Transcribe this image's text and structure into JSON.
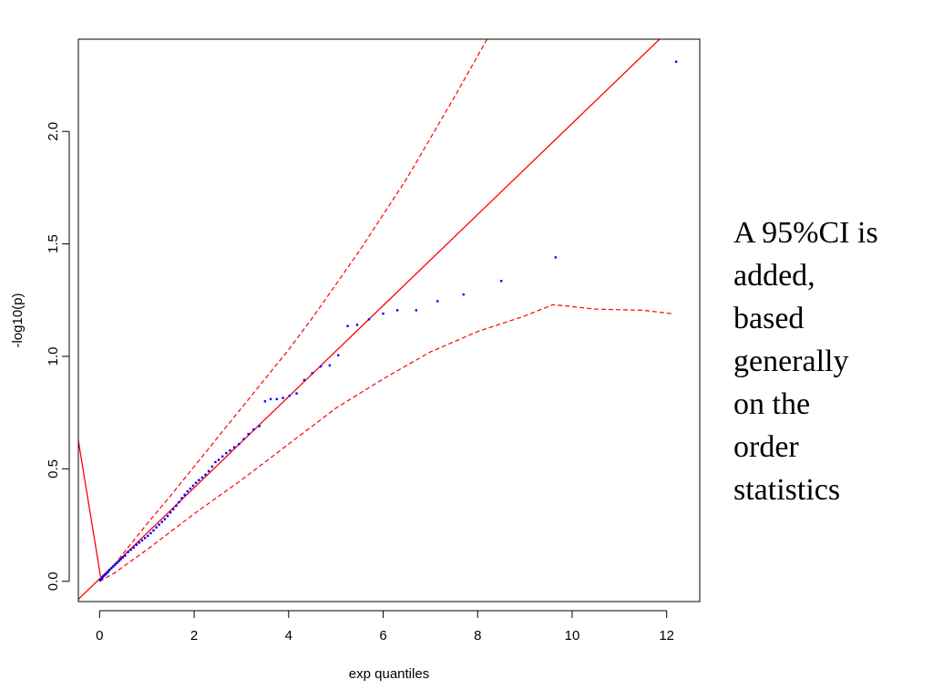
{
  "chart_data": {
    "type": "scatter",
    "xlabel": "exp quantiles",
    "ylabel": "-log10(p)",
    "xlim": [
      -0.45,
      12.7
    ],
    "ylim": [
      -0.09,
      2.41
    ],
    "x_ticks": [
      0,
      2,
      4,
      6,
      8,
      10,
      12
    ],
    "x_tick_labels": [
      "0",
      "2",
      "4",
      "6",
      "8",
      "10",
      "12"
    ],
    "y_ticks": [
      0.0,
      0.5,
      1.0,
      1.5,
      2.0
    ],
    "y_tick_labels": [
      "0.0",
      "0.5",
      "1.0",
      "1.5",
      "2.0"
    ],
    "grid": false,
    "colors": {
      "points": "#0000ff",
      "lines": "#ff0000",
      "axes": "#000000"
    },
    "points": [
      [
        0.01,
        0.005
      ],
      [
        0.03,
        0.01
      ],
      [
        0.05,
        0.015
      ],
      [
        0.07,
        0.02
      ],
      [
        0.09,
        0.025
      ],
      [
        0.12,
        0.03
      ],
      [
        0.15,
        0.035
      ],
      [
        0.18,
        0.042
      ],
      [
        0.21,
        0.05
      ],
      [
        0.25,
        0.058
      ],
      [
        0.29,
        0.066
      ],
      [
        0.33,
        0.074
      ],
      [
        0.37,
        0.082
      ],
      [
        0.41,
        0.09
      ],
      [
        0.45,
        0.098
      ],
      [
        0.49,
        0.106
      ],
      [
        0.54,
        0.114
      ],
      [
        0.6,
        0.13
      ],
      [
        0.66,
        0.14
      ],
      [
        0.72,
        0.15
      ],
      [
        0.78,
        0.162
      ],
      [
        0.84,
        0.172
      ],
      [
        0.9,
        0.182
      ],
      [
        0.96,
        0.192
      ],
      [
        1.02,
        0.202
      ],
      [
        1.08,
        0.214
      ],
      [
        1.14,
        0.226
      ],
      [
        1.2,
        0.24
      ],
      [
        1.26,
        0.252
      ],
      [
        1.32,
        0.264
      ],
      [
        1.38,
        0.276
      ],
      [
        1.44,
        0.29
      ],
      [
        1.5,
        0.306
      ],
      [
        1.56,
        0.32
      ],
      [
        1.62,
        0.336
      ],
      [
        1.68,
        0.352
      ],
      [
        1.74,
        0.37
      ],
      [
        1.8,
        0.385
      ],
      [
        1.86,
        0.4
      ],
      [
        1.92,
        0.412
      ],
      [
        1.98,
        0.425
      ],
      [
        2.04,
        0.438
      ],
      [
        2.1,
        0.45
      ],
      [
        2.17,
        0.462
      ],
      [
        2.24,
        0.474
      ],
      [
        2.31,
        0.49
      ],
      [
        2.38,
        0.51
      ],
      [
        2.45,
        0.53
      ],
      [
        2.52,
        0.54
      ],
      [
        2.6,
        0.555
      ],
      [
        2.68,
        0.57
      ],
      [
        2.76,
        0.582
      ],
      [
        2.85,
        0.596
      ],
      [
        2.95,
        0.61
      ],
      [
        3.05,
        0.632
      ],
      [
        3.15,
        0.655
      ],
      [
        3.26,
        0.675
      ],
      [
        3.38,
        0.69
      ],
      [
        3.5,
        0.8
      ],
      [
        3.62,
        0.81
      ],
      [
        3.75,
        0.81
      ],
      [
        3.88,
        0.815
      ],
      [
        4.02,
        0.825
      ],
      [
        4.17,
        0.835
      ],
      [
        4.33,
        0.895
      ],
      [
        4.5,
        0.925
      ],
      [
        4.68,
        0.955
      ],
      [
        4.87,
        0.96
      ],
      [
        5.05,
        1.005
      ],
      [
        5.25,
        1.135
      ],
      [
        5.45,
        1.14
      ],
      [
        5.7,
        1.165
      ],
      [
        6.0,
        1.19
      ],
      [
        6.3,
        1.205
      ],
      [
        6.7,
        1.205
      ],
      [
        7.15,
        1.245
      ],
      [
        7.7,
        1.275
      ],
      [
        8.5,
        1.335
      ],
      [
        9.65,
        1.44
      ],
      [
        12.2,
        2.31
      ]
    ],
    "lines": [
      {
        "style": "solid",
        "points": [
          [
            -0.5,
            -0.09
          ],
          [
            11.85,
            2.41
          ]
        ]
      },
      {
        "style": "solid",
        "points": [
          [
            -0.5,
            0.69
          ],
          [
            0.02,
            0.02
          ]
        ]
      },
      {
        "style": "dashed",
        "points": [
          [
            0.0,
            0.0
          ],
          [
            0.3,
            0.07
          ],
          [
            0.6,
            0.15
          ],
          [
            1.0,
            0.255
          ],
          [
            1.5,
            0.38
          ],
          [
            2.0,
            0.51
          ],
          [
            2.5,
            0.64
          ],
          [
            3.0,
            0.77
          ],
          [
            3.5,
            0.9
          ],
          [
            4.0,
            1.03
          ],
          [
            4.5,
            1.17
          ],
          [
            5.0,
            1.32
          ],
          [
            5.5,
            1.47
          ],
          [
            6.0,
            1.63
          ],
          [
            6.5,
            1.79
          ],
          [
            7.0,
            1.97
          ],
          [
            7.5,
            2.15
          ],
          [
            8.2,
            2.41
          ]
        ]
      },
      {
        "style": "dashed",
        "points": [
          [
            0.0,
            0.0
          ],
          [
            0.3,
            0.035
          ],
          [
            0.6,
            0.08
          ],
          [
            1.0,
            0.14
          ],
          [
            1.5,
            0.22
          ],
          [
            2.0,
            0.3
          ],
          [
            3.0,
            0.45
          ],
          [
            4.0,
            0.61
          ],
          [
            5.0,
            0.77
          ],
          [
            6.0,
            0.9
          ],
          [
            7.0,
            1.02
          ],
          [
            8.0,
            1.11
          ],
          [
            9.0,
            1.18
          ],
          [
            9.6,
            1.23
          ],
          [
            10.5,
            1.21
          ],
          [
            11.5,
            1.205
          ],
          [
            12.1,
            1.19
          ]
        ]
      }
    ]
  },
  "annotation": {
    "lines": [
      "A 95%CI is",
      "added,",
      "based",
      "generally",
      "on the",
      "order",
      "statistics"
    ]
  }
}
